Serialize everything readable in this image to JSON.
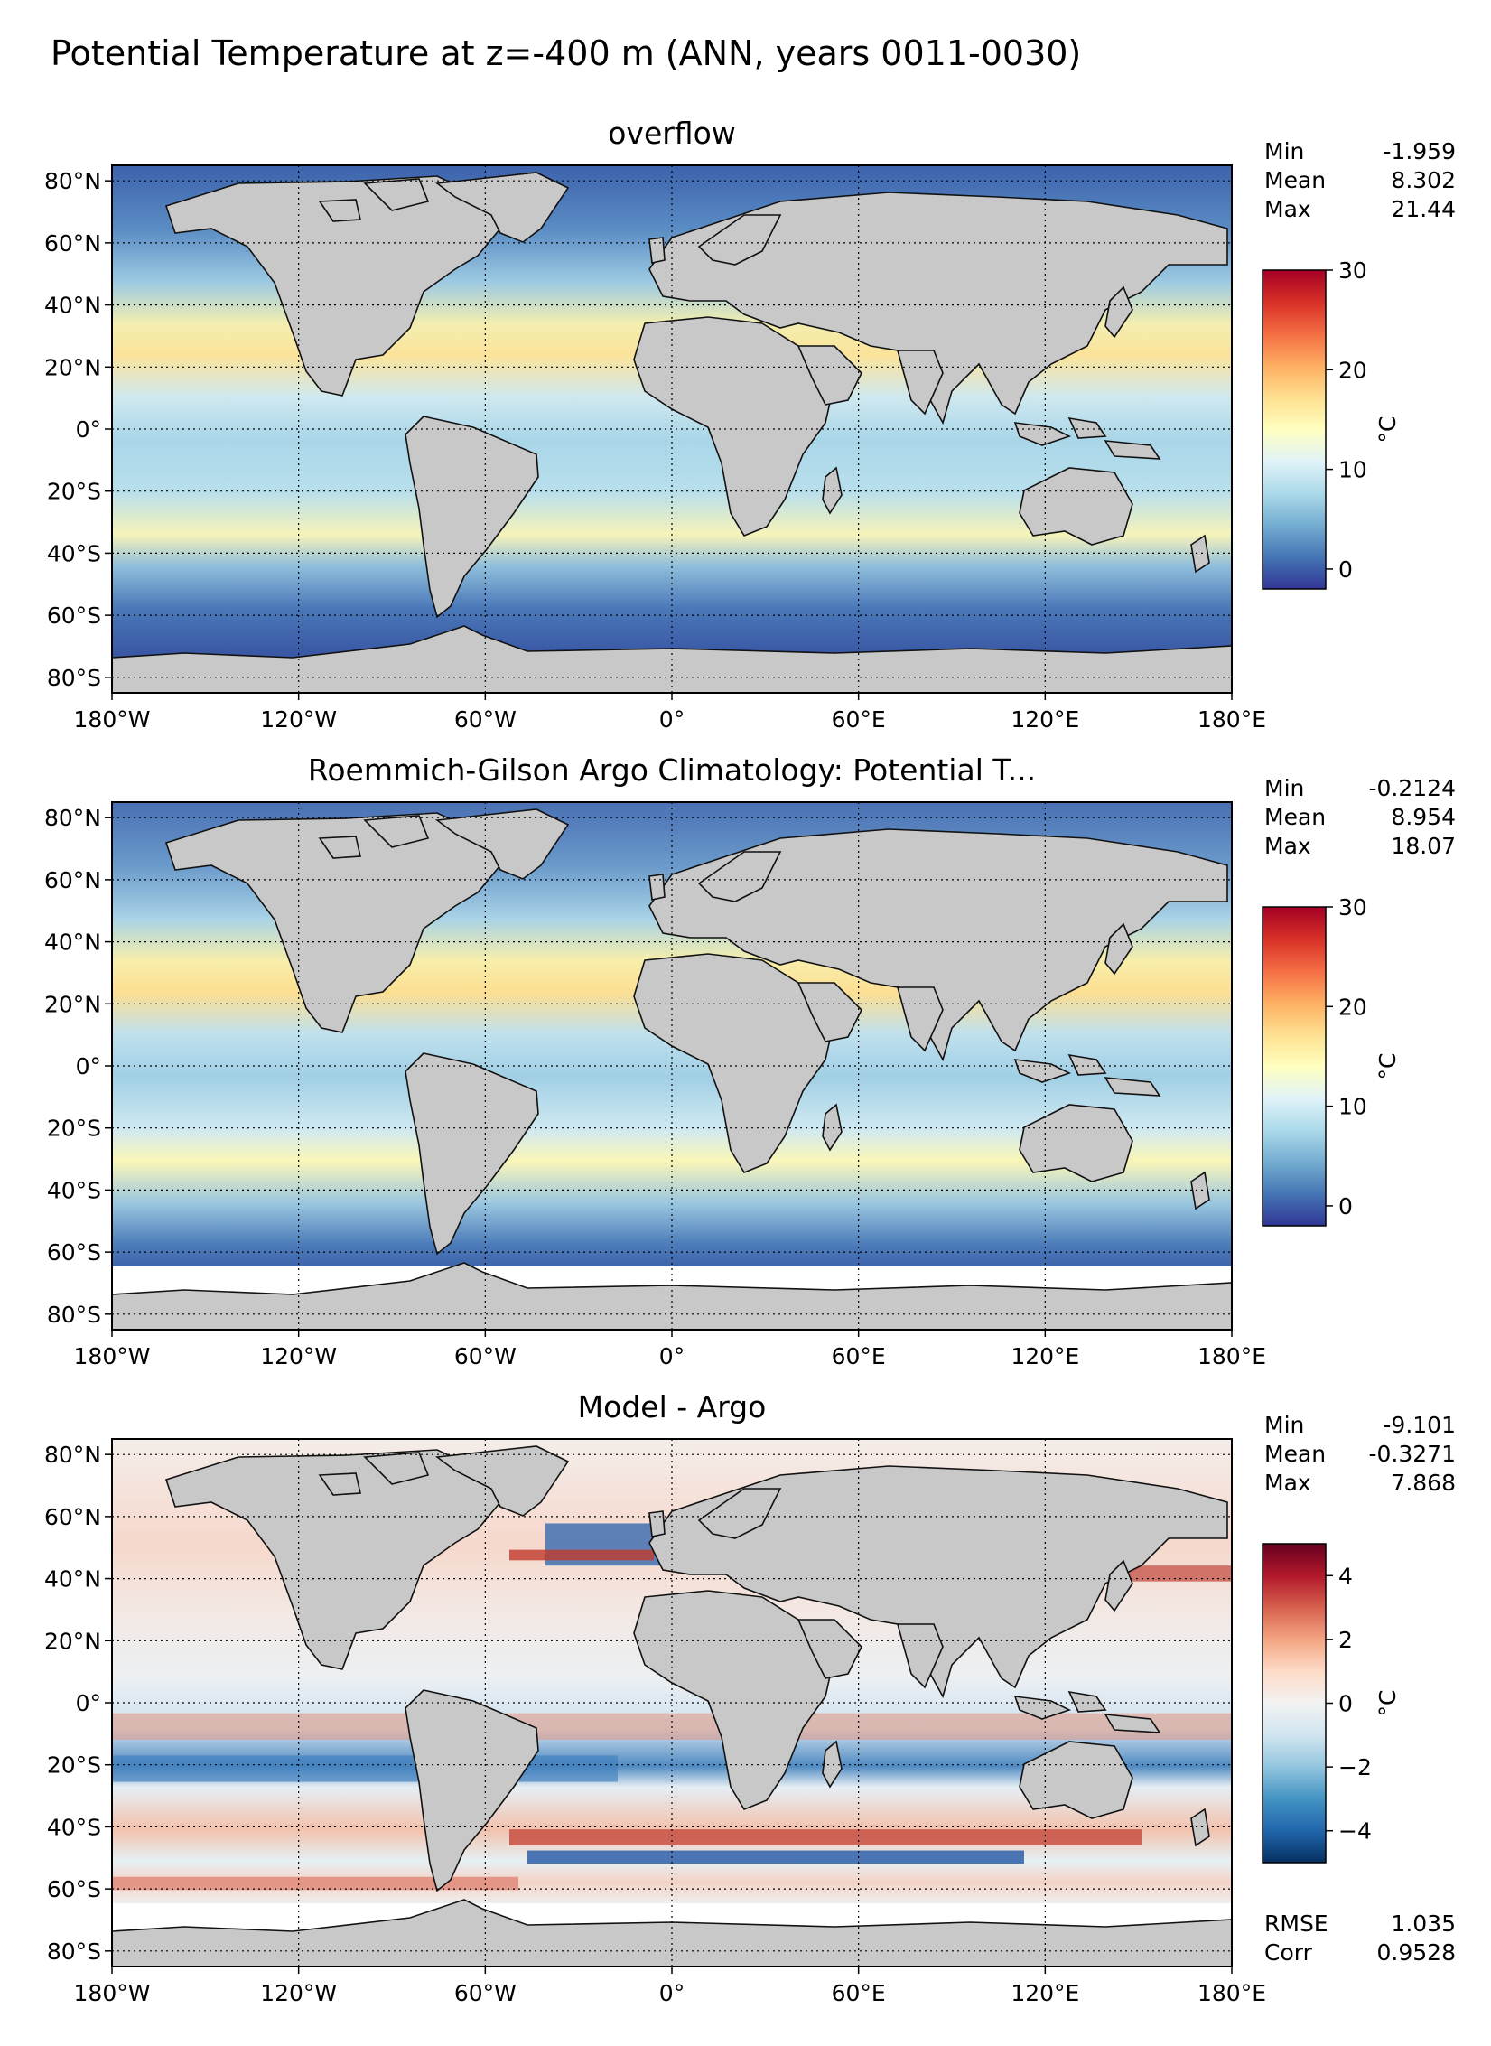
{
  "figure": {
    "title": "Potential Temperature at z=-400 m (ANN, years 0011-0030)"
  },
  "axes": {
    "lon_ticks": [
      "180°W",
      "120°W",
      "60°W",
      "0°",
      "60°E",
      "120°E",
      "180°E"
    ],
    "lat_ticks": [
      "80°N",
      "60°N",
      "40°N",
      "20°N",
      "0°",
      "20°S",
      "40°S",
      "60°S",
      "80°S"
    ]
  },
  "colors": {
    "land": "#c8c8c8",
    "no_data": "#ffffff",
    "cmap_temperature": [
      "#313695",
      "#4575b4",
      "#74add1",
      "#abd9e9",
      "#e0f3f8",
      "#ffffbf",
      "#fee090",
      "#fdae61",
      "#f46d43",
      "#d73027",
      "#a50026"
    ],
    "cmap_difference": [
      "#053061",
      "#2166ac",
      "#4393c3",
      "#92c5de",
      "#d1e5f0",
      "#f2f2f2",
      "#fddbc7",
      "#f4a582",
      "#d6604d",
      "#b2182b",
      "#67001f"
    ]
  },
  "panels": [
    {
      "title": "overflow",
      "stats": [
        {
          "label": "Min",
          "value": "-1.959"
        },
        {
          "label": "Mean",
          "value": "8.302"
        },
        {
          "label": "Max",
          "value": "21.44"
        }
      ],
      "colorbar": {
        "ticks": [
          "0",
          "10",
          "20",
          "30"
        ],
        "tick_values": [
          0,
          10,
          20,
          30
        ],
        "range": [
          -2,
          30
        ],
        "unit": "°C"
      }
    },
    {
      "title": "Roemmich-Gilson Argo Climatology: Potential T...",
      "stats": [
        {
          "label": "Min",
          "value": "-0.2124"
        },
        {
          "label": "Mean",
          "value": "8.954"
        },
        {
          "label": "Max",
          "value": "18.07"
        }
      ],
      "colorbar": {
        "ticks": [
          "0",
          "10",
          "20",
          "30"
        ],
        "tick_values": [
          0,
          10,
          20,
          30
        ],
        "range": [
          -2,
          30
        ],
        "unit": "°C"
      }
    },
    {
      "title": "Model - Argo",
      "stats": [
        {
          "label": "Min",
          "value": "-9.101"
        },
        {
          "label": "Mean",
          "value": "-0.3271"
        },
        {
          "label": "Max",
          "value": "7.868"
        }
      ],
      "colorbar": {
        "ticks": [
          "4",
          "2",
          "0",
          "−2",
          "−4"
        ],
        "tick_values": [
          4,
          2,
          0,
          -2,
          -4
        ],
        "range": [
          -5,
          5
        ],
        "unit": "°C"
      },
      "extra_stats": [
        {
          "label": "RMSE",
          "value": "1.035"
        },
        {
          "label": "Corr",
          "value": "0.9528"
        }
      ]
    }
  ]
}
